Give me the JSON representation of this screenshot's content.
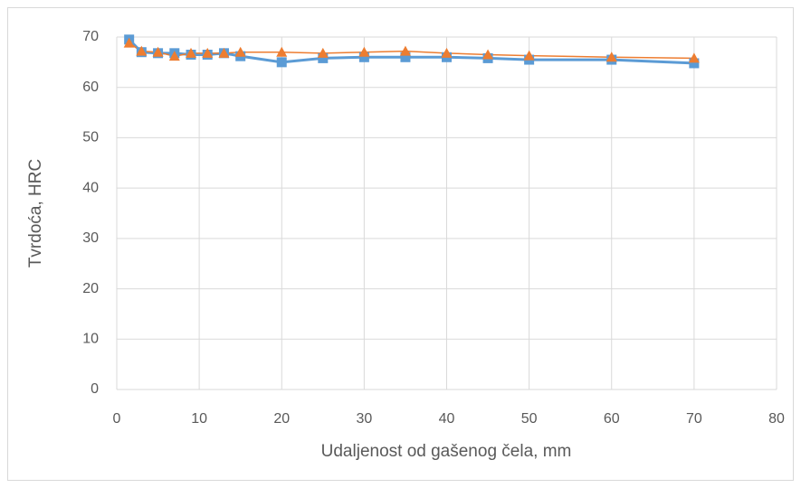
{
  "chart_data": {
    "type": "scatter",
    "x_label": "Udaljenost od gašenog čela, mm",
    "y_label": "Tvrdoća, HRC",
    "x": [
      1.5,
      3,
      5,
      7,
      9,
      11,
      13,
      15,
      20,
      25,
      30,
      35,
      40,
      45,
      50,
      60,
      70
    ],
    "series": [
      {
        "color": "#5b9bd5",
        "marker": "square",
        "values": [
          69.5,
          67,
          66.8,
          66.8,
          66.5,
          66.5,
          66.8,
          66.2,
          65,
          65.8,
          66,
          66,
          66,
          65.8,
          65.5,
          65.5,
          64.8
        ]
      },
      {
        "color": "#ed7d31",
        "marker": "triangle",
        "values": [
          68.8,
          67.2,
          67,
          66.2,
          66.8,
          66.8,
          66.8,
          67,
          67,
          66.8,
          67,
          67.2,
          66.8,
          66.5,
          66.3,
          66,
          65.8
        ]
      }
    ],
    "xlim": [
      0,
      80
    ],
    "xticks": [
      0,
      10,
      20,
      30,
      40,
      50,
      60,
      70,
      80
    ],
    "ylim": [
      0,
      70
    ],
    "yticks": [
      0,
      10,
      20,
      30,
      40,
      50,
      60,
      70
    ],
    "grid": true
  }
}
